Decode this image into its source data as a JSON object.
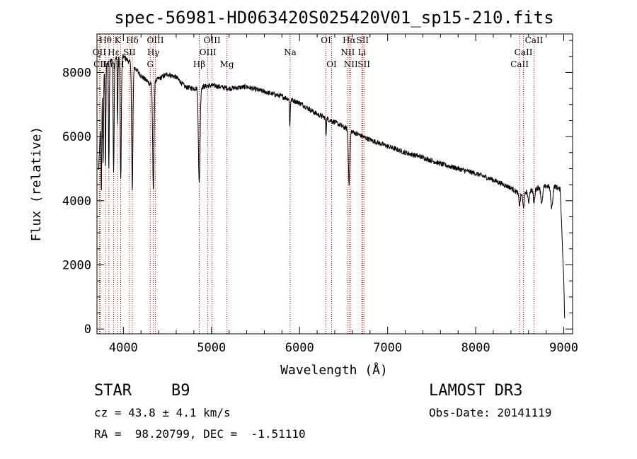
{
  "chart_data": {
    "type": "line",
    "title": "spec-56981-HD063420S025420V01_sp15-210.fits",
    "xlabel": "Wavelength (Å)",
    "ylabel": "Flux (relative)",
    "xlim": [
      3700,
      9100
    ],
    "ylim": [
      -150,
      9200
    ],
    "xticks": [
      4000,
      5000,
      6000,
      7000,
      8000,
      9000
    ],
    "yticks": [
      0,
      2000,
      4000,
      6000,
      8000
    ],
    "continuum": [
      [
        3720,
        5000
      ],
      [
        3760,
        7600
      ],
      [
        3800,
        8300
      ],
      [
        3900,
        8450
      ],
      [
        4000,
        8500
      ],
      [
        4100,
        8250
      ],
      [
        4200,
        7900
      ],
      [
        4300,
        7650
      ],
      [
        4400,
        7800
      ],
      [
        4500,
        7950
      ],
      [
        4600,
        7850
      ],
      [
        4700,
        7550
      ],
      [
        4800,
        7500
      ],
      [
        4900,
        7550
      ],
      [
        5000,
        7600
      ],
      [
        5200,
        7500
      ],
      [
        5400,
        7550
      ],
      [
        5600,
        7400
      ],
      [
        5800,
        7250
      ],
      [
        6000,
        7050
      ],
      [
        6200,
        6700
      ],
      [
        6400,
        6450
      ],
      [
        6600,
        6150
      ],
      [
        6800,
        5900
      ],
      [
        7000,
        5700
      ],
      [
        7200,
        5500
      ],
      [
        7400,
        5350
      ],
      [
        7600,
        5150
      ],
      [
        7800,
        5000
      ],
      [
        8000,
        4850
      ],
      [
        8200,
        4650
      ],
      [
        8400,
        4400
      ],
      [
        8500,
        4200
      ],
      [
        8600,
        4300
      ],
      [
        8700,
        4400
      ],
      [
        8800,
        4450
      ],
      [
        8900,
        4450
      ],
      [
        8960,
        4350
      ],
      [
        9000,
        1500
      ],
      [
        9010,
        300
      ]
    ],
    "absorption_lines": [
      {
        "center": 3750,
        "depth": 0.4,
        "width": 6
      },
      {
        "center": 3770,
        "depth": 0.35,
        "width": 6
      },
      {
        "center": 3797,
        "depth": 0.4,
        "width": 6
      },
      {
        "center": 3835,
        "depth": 0.4,
        "width": 7
      },
      {
        "center": 3889,
        "depth": 0.42,
        "width": 8
      },
      {
        "center": 3934,
        "depth": 0.25,
        "width": 5
      },
      {
        "center": 3970,
        "depth": 0.45,
        "width": 9
      },
      {
        "center": 4101,
        "depth": 0.48,
        "width": 10
      },
      {
        "center": 4340,
        "depth": 0.44,
        "width": 11
      },
      {
        "center": 4861,
        "depth": 0.4,
        "width": 13
      },
      {
        "center": 5890,
        "depth": 0.12,
        "width": 6
      },
      {
        "center": 6300,
        "depth": 0.08,
        "width": 6
      },
      {
        "center": 6563,
        "depth": 0.27,
        "width": 12
      },
      {
        "center": 8498,
        "depth": 0.08,
        "width": 12
      },
      {
        "center": 8542,
        "depth": 0.1,
        "width": 12
      },
      {
        "center": 8600,
        "depth": 0.08,
        "width": 12
      },
      {
        "center": 8662,
        "depth": 0.1,
        "width": 12
      },
      {
        "center": 8750,
        "depth": 0.12,
        "width": 14
      },
      {
        "center": 8863,
        "depth": 0.15,
        "width": 16
      }
    ],
    "line_markers": [
      {
        "label": "Hθ",
        "wavelength": 3798,
        "row": 0
      },
      {
        "label": "OII",
        "wavelength": 3727,
        "row": 1
      },
      {
        "label": "CII",
        "wavelength": 3736,
        "row": 2
      },
      {
        "label": "Hη",
        "wavelength": 3835,
        "row": 2
      },
      {
        "label": "Hε",
        "wavelength": 3889,
        "row": 1
      },
      {
        "label": "K",
        "wavelength": 3934,
        "row": 0
      },
      {
        "label": "H",
        "wavelength": 3969,
        "row": 2
      },
      {
        "label": "SII",
        "wavelength": 4069,
        "row": 1
      },
      {
        "label": "Hδ",
        "wavelength": 4102,
        "row": 0
      },
      {
        "label": "OIII",
        "wavelength": 4363,
        "row": 0
      },
      {
        "label": "Hγ",
        "wavelength": 4340,
        "row": 1
      },
      {
        "label": "G",
        "wavelength": 4305,
        "row": 2
      },
      {
        "label": "Hβ",
        "wavelength": 4861,
        "row": 2
      },
      {
        "label": "OIII",
        "wavelength": 5007,
        "row": 0
      },
      {
        "label": "OIII",
        "wavelength": 4959,
        "row": 1
      },
      {
        "label": "Mg",
        "wavelength": 5175,
        "row": 2
      },
      {
        "label": "Na",
        "wavelength": 5893,
        "row": 1
      },
      {
        "label": "OI",
        "wavelength": 6300,
        "row": 0
      },
      {
        "label": "OI",
        "wavelength": 6364,
        "row": 2
      },
      {
        "label": "Hα",
        "wavelength": 6563,
        "row": 0
      },
      {
        "label": "NII",
        "wavelength": 6548,
        "row": 1
      },
      {
        "label": "NII",
        "wavelength": 6583,
        "row": 2
      },
      {
        "label": "SII",
        "wavelength": 6716,
        "row": 0
      },
      {
        "label": "Li",
        "wavelength": 6708,
        "row": 1
      },
      {
        "label": "SII",
        "wavelength": 6731,
        "row": 2
      },
      {
        "label": "CaII",
        "wavelength": 8662,
        "row": 0
      },
      {
        "label": "CaII",
        "wavelength": 8542,
        "row": 1
      },
      {
        "label": "CaII",
        "wavelength": 8498,
        "row": 2
      }
    ]
  },
  "info": {
    "object_type": "STAR",
    "subclass": "B9",
    "survey": "LAMOST DR3",
    "redshift": "cz = 43.8 ± 4.1 km/s",
    "obs_date": "Obs-Date: 20141119",
    "coords": "RA =  98.20799, DEC =  -1.51110"
  },
  "colors": {
    "spectrum": "#000000",
    "marker": "#cc0000",
    "axes": "#000000"
  }
}
